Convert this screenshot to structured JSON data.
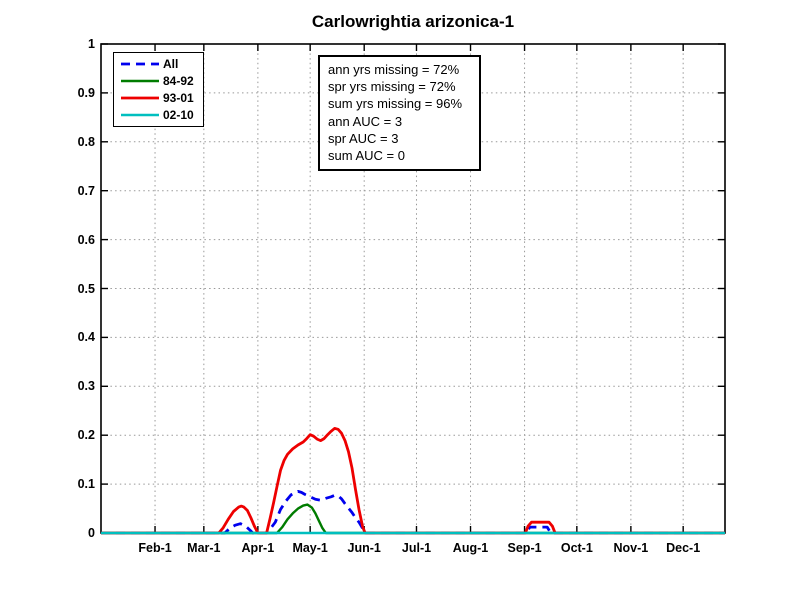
{
  "chart_data": {
    "type": "line",
    "title": "Carlowrightia arizonica-1",
    "xlabel": "",
    "ylabel": "",
    "xlim_days": [
      0,
      358
    ],
    "ylim": [
      0,
      1
    ],
    "grid": true,
    "legend_position": "top-left-inside",
    "yticks": [
      {
        "value": 0.0,
        "label": "0"
      },
      {
        "value": 0.1,
        "label": "0.1"
      },
      {
        "value": 0.2,
        "label": "0.2"
      },
      {
        "value": 0.3,
        "label": "0.3"
      },
      {
        "value": 0.4,
        "label": "0.4"
      },
      {
        "value": 0.5,
        "label": "0.5"
      },
      {
        "value": 0.6,
        "label": "0.6"
      },
      {
        "value": 0.7,
        "label": "0.7"
      },
      {
        "value": 0.8,
        "label": "0.8"
      },
      {
        "value": 0.9,
        "label": "0.9"
      },
      {
        "value": 1.0,
        "label": "1"
      }
    ],
    "xticks": [
      {
        "day": 31,
        "label": "Feb-1"
      },
      {
        "day": 59,
        "label": "Mar-1"
      },
      {
        "day": 90,
        "label": "Apr-1"
      },
      {
        "day": 120,
        "label": "May-1"
      },
      {
        "day": 151,
        "label": "Jun-1"
      },
      {
        "day": 181,
        "label": "Jul-1"
      },
      {
        "day": 212,
        "label": "Aug-1"
      },
      {
        "day": 243,
        "label": "Sep-1"
      },
      {
        "day": 273,
        "label": "Oct-1"
      },
      {
        "day": 304,
        "label": "Nov-1"
      },
      {
        "day": 334,
        "label": "Dec-1"
      }
    ],
    "colors": {
      "axis": "#000000",
      "grid": "#999999",
      "background": "#ffffff",
      "all_series": "#0000EE",
      "series_84_92": "#007C00",
      "series_93_01": "#EE0000",
      "series_02_10": "#00BFBF"
    },
    "series": [
      {
        "name": "All",
        "color": "#0000EE",
        "dash": [
          9,
          6
        ],
        "width": 2.8,
        "points": [
          [
            0,
            0
          ],
          [
            68,
            0
          ],
          [
            71,
            0
          ],
          [
            74,
            0.01
          ],
          [
            77,
            0.016
          ],
          [
            80,
            0.019
          ],
          [
            83,
            0.014
          ],
          [
            86,
            0.004
          ],
          [
            87,
            0
          ],
          [
            95,
            0
          ],
          [
            97,
            0.008
          ],
          [
            100,
            0.022
          ],
          [
            103,
            0.048
          ],
          [
            106,
            0.065
          ],
          [
            109,
            0.078
          ],
          [
            111,
            0.082
          ],
          [
            113,
            0.085
          ],
          [
            115,
            0.083
          ],
          [
            117,
            0.079
          ],
          [
            120,
            0.074
          ],
          [
            123,
            0.069
          ],
          [
            126,
            0.067
          ],
          [
            129,
            0.071
          ],
          [
            132,
            0.074
          ],
          [
            134,
            0.077
          ],
          [
            136,
            0.076
          ],
          [
            138,
            0.07
          ],
          [
            140,
            0.06
          ],
          [
            142,
            0.051
          ],
          [
            144,
            0.042
          ],
          [
            146,
            0.031
          ],
          [
            148,
            0.022
          ],
          [
            150,
            0.01
          ],
          [
            151.5,
            0
          ],
          [
            244,
            0
          ],
          [
            246,
            0.012
          ],
          [
            256,
            0.012
          ],
          [
            258,
            0
          ],
          [
            358,
            0
          ]
        ]
      },
      {
        "name": "84-92",
        "color": "#007C00",
        "dash": null,
        "width": 2.4,
        "points": [
          [
            0,
            0
          ],
          [
            101,
            0
          ],
          [
            104,
            0.012
          ],
          [
            107,
            0.028
          ],
          [
            110,
            0.04
          ],
          [
            113,
            0.05
          ],
          [
            116,
            0.056
          ],
          [
            118.5,
            0.058
          ],
          [
            121,
            0.052
          ],
          [
            123,
            0.04
          ],
          [
            125,
            0.025
          ],
          [
            127,
            0.01
          ],
          [
            129,
            0
          ],
          [
            358,
            0
          ]
        ]
      },
      {
        "name": "93-01",
        "color": "#EE0000",
        "dash": null,
        "width": 2.8,
        "points": [
          [
            0,
            0
          ],
          [
            67.5,
            0
          ],
          [
            70,
            0.01
          ],
          [
            73,
            0.028
          ],
          [
            76,
            0.044
          ],
          [
            79,
            0.053
          ],
          [
            80.5,
            0.055
          ],
          [
            82,
            0.053
          ],
          [
            84,
            0.046
          ],
          [
            86,
            0.031
          ],
          [
            88,
            0.014
          ],
          [
            90,
            0
          ],
          [
            95,
            0
          ],
          [
            97,
            0.03
          ],
          [
            99,
            0.062
          ],
          [
            101,
            0.095
          ],
          [
            103,
            0.128
          ],
          [
            105,
            0.148
          ],
          [
            107,
            0.161
          ],
          [
            110,
            0.172
          ],
          [
            113,
            0.18
          ],
          [
            116,
            0.186
          ],
          [
            118,
            0.193
          ],
          [
            120,
            0.201
          ],
          [
            122,
            0.198
          ],
          [
            124,
            0.192
          ],
          [
            126,
            0.189
          ],
          [
            128,
            0.193
          ],
          [
            130,
            0.201
          ],
          [
            132,
            0.208
          ],
          [
            134,
            0.214
          ],
          [
            136,
            0.212
          ],
          [
            138,
            0.204
          ],
          [
            140,
            0.189
          ],
          [
            142,
            0.166
          ],
          [
            144,
            0.133
          ],
          [
            146,
            0.089
          ],
          [
            148,
            0.048
          ],
          [
            150,
            0.014
          ],
          [
            151.5,
            0
          ],
          [
            243.5,
            0
          ],
          [
            245,
            0.014
          ],
          [
            247,
            0.022
          ],
          [
            257,
            0.022
          ],
          [
            259,
            0.014
          ],
          [
            260.5,
            0
          ],
          [
            358,
            0
          ]
        ]
      },
      {
        "name": "02-10",
        "color": "#00BFBF",
        "dash": null,
        "width": 2.4,
        "points": [
          [
            0,
            0
          ],
          [
            358,
            0
          ]
        ]
      }
    ],
    "legend": {
      "entries": [
        {
          "label": "All",
          "series": "All"
        },
        {
          "label": "84-92",
          "series": "84-92"
        },
        {
          "label": "93-01",
          "series": "93-01"
        },
        {
          "label": "02-10",
          "series": "02-10"
        }
      ]
    },
    "annotation": {
      "lines": [
        "ann yrs missing = 72%",
        "spr yrs missing = 72%",
        "sum yrs missing = 96%",
        "ann AUC = 3",
        "spr AUC = 3",
        "sum AUC = 0"
      ]
    }
  }
}
